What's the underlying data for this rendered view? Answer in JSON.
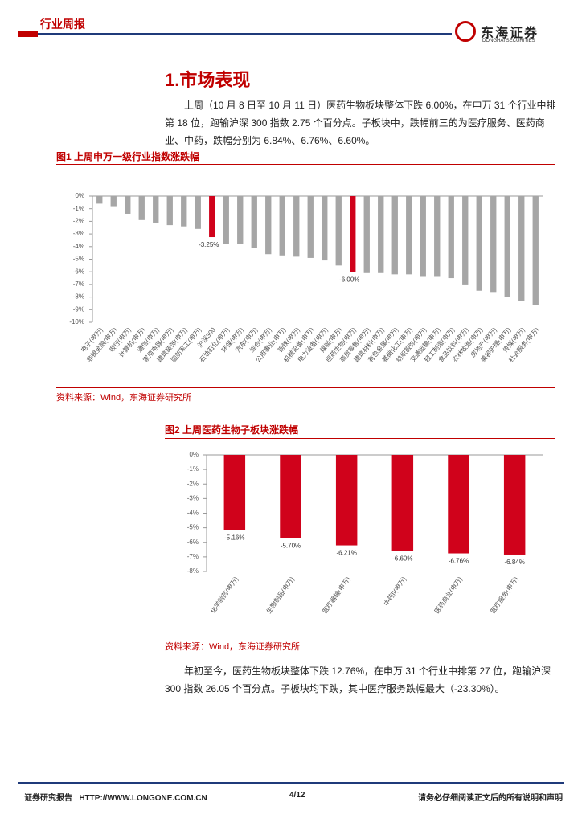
{
  "header": {
    "report_type": "行业周报",
    "logo_cn": "东海证券",
    "logo_en": "DONGHAI SECURITIES"
  },
  "section": {
    "title": "1.市场表现",
    "paragraph1": "上周（10 月 8 日至 10 月 11 日）医药生物板块整体下跌 6.00%，在申万 31 个行业中排第 18 位，跑输沪深 300 指数 2.75 个百分点。子板块中，跌幅前三的为医疗服务、医药商业、中药，跌幅分别为 6.84%、6.76%、6.60%。",
    "paragraph2": "年初至今，医药生物板块整体下跌 12.76%，在申万 31 个行业中排第 27 位，跑输沪深 300 指数 26.05 个百分点。子板块均下跌，其中医疗服务跌幅最大（-23.30%）。"
  },
  "chart_data": [
    {
      "type": "bar",
      "title": "图1  上周申万一级行业指数涨跌幅",
      "source": "资料来源：Wind，东海证券研究所",
      "categories": [
        "电子(申万)",
        "非银金融(申万)",
        "银行(申万)",
        "计算机(申万)",
        "通信(申万)",
        "家用电器(申万)",
        "建筑装饰(申万)",
        "国防军工(申万)",
        "沪深300",
        "石油石化(申万)",
        "环保(申万)",
        "汽车(申万)",
        "综合(申万)",
        "公用事业(申万)",
        "钢铁(申万)",
        "机械设备(申万)",
        "电力设备(申万)",
        "煤炭(申万)",
        "医药生物(申万)",
        "商贸零售(申万)",
        "建筑材料(申万)",
        "有色金属(申万)",
        "基础化工(申万)",
        "纺织服饰(申万)",
        "交通运输(申万)",
        "轻工制造(申万)",
        "食品饮料(申万)",
        "农林牧渔(申万)",
        "房地产(申万)",
        "美容护理(申万)",
        "传媒(申万)",
        "社会服务(申万)"
      ],
      "values": [
        -0.6,
        -0.8,
        -1.4,
        -1.9,
        -2.1,
        -2.3,
        -2.4,
        -2.6,
        -3.25,
        -3.8,
        -3.8,
        -4.1,
        -4.6,
        -4.7,
        -4.8,
        -4.9,
        -5.1,
        -5.5,
        -6.0,
        -6.1,
        -6.1,
        -6.2,
        -6.2,
        -6.4,
        -6.4,
        -6.5,
        -7.0,
        -7.5,
        -7.6,
        -8.0,
        -8.3,
        -8.6
      ],
      "value_labels": [
        null,
        null,
        null,
        null,
        null,
        null,
        null,
        null,
        "-3.25%",
        null,
        null,
        null,
        null,
        null,
        null,
        null,
        null,
        null,
        "-6.00%",
        null,
        null,
        null,
        null,
        null,
        null,
        null,
        null,
        null,
        null,
        null,
        null,
        null
      ],
      "colors": [
        "#a6a6a6",
        "#a6a6a6",
        "#a6a6a6",
        "#a6a6a6",
        "#a6a6a6",
        "#a6a6a6",
        "#a6a6a6",
        "#a6a6a6",
        "#d0021b",
        "#a6a6a6",
        "#a6a6a6",
        "#a6a6a6",
        "#a6a6a6",
        "#a6a6a6",
        "#a6a6a6",
        "#a6a6a6",
        "#a6a6a6",
        "#a6a6a6",
        "#d0021b",
        "#a6a6a6",
        "#a6a6a6",
        "#a6a6a6",
        "#a6a6a6",
        "#a6a6a6",
        "#a6a6a6",
        "#a6a6a6",
        "#a6a6a6",
        "#a6a6a6",
        "#a6a6a6",
        "#a6a6a6",
        "#a6a6a6",
        "#a6a6a6"
      ],
      "ylim": [
        0,
        -10
      ],
      "yticks": [
        {
          "value": 0,
          "label": "0%"
        },
        {
          "value": -1,
          "label": "-1%"
        },
        {
          "value": -2,
          "label": "-2%"
        },
        {
          "value": -3,
          "label": "-3%"
        },
        {
          "value": -4,
          "label": "-4%"
        },
        {
          "value": -5,
          "label": "-5%"
        },
        {
          "value": -6,
          "label": "-6%"
        },
        {
          "value": -7,
          "label": "-7%"
        },
        {
          "value": -8,
          "label": "-8%"
        },
        {
          "value": -9,
          "label": "-9%"
        },
        {
          "value": -10,
          "label": "-10%"
        }
      ]
    },
    {
      "type": "bar",
      "title": "图2  上周医药生物子板块涨跌幅",
      "source": "资料来源：Wind，东海证券研究所",
      "categories": [
        "化学制药(申万)",
        "生物制品(申万)",
        "医疗器械(申万)",
        "中药II(申万)",
        "医药商业(申万)",
        "医疗服务(申万)"
      ],
      "values": [
        -5.16,
        -5.7,
        -6.21,
        -6.6,
        -6.76,
        -6.84
      ],
      "value_labels": [
        "-5.16%",
        "-5.70%",
        "-6.21%",
        "-6.60%",
        "-6.76%",
        "-6.84%"
      ],
      "color": "#d0021b",
      "ylim": [
        0,
        -8
      ],
      "yticks": [
        {
          "value": 0,
          "label": "0%"
        },
        {
          "value": -1,
          "label": "-1%"
        },
        {
          "value": -2,
          "label": "-2%"
        },
        {
          "value": -3,
          "label": "-3%"
        },
        {
          "value": -4,
          "label": "-4%"
        },
        {
          "value": -5,
          "label": "-5%"
        },
        {
          "value": -6,
          "label": "-6%"
        },
        {
          "value": -7,
          "label": "-7%"
        },
        {
          "value": -8,
          "label": "-8%"
        }
      ]
    }
  ],
  "footer": {
    "left": "证券研究报告   HTTP://WWW.LONGONE.COM.CN",
    "page": "4/12",
    "right": "请务必仔细阅读正文后的所有说明和声明"
  }
}
